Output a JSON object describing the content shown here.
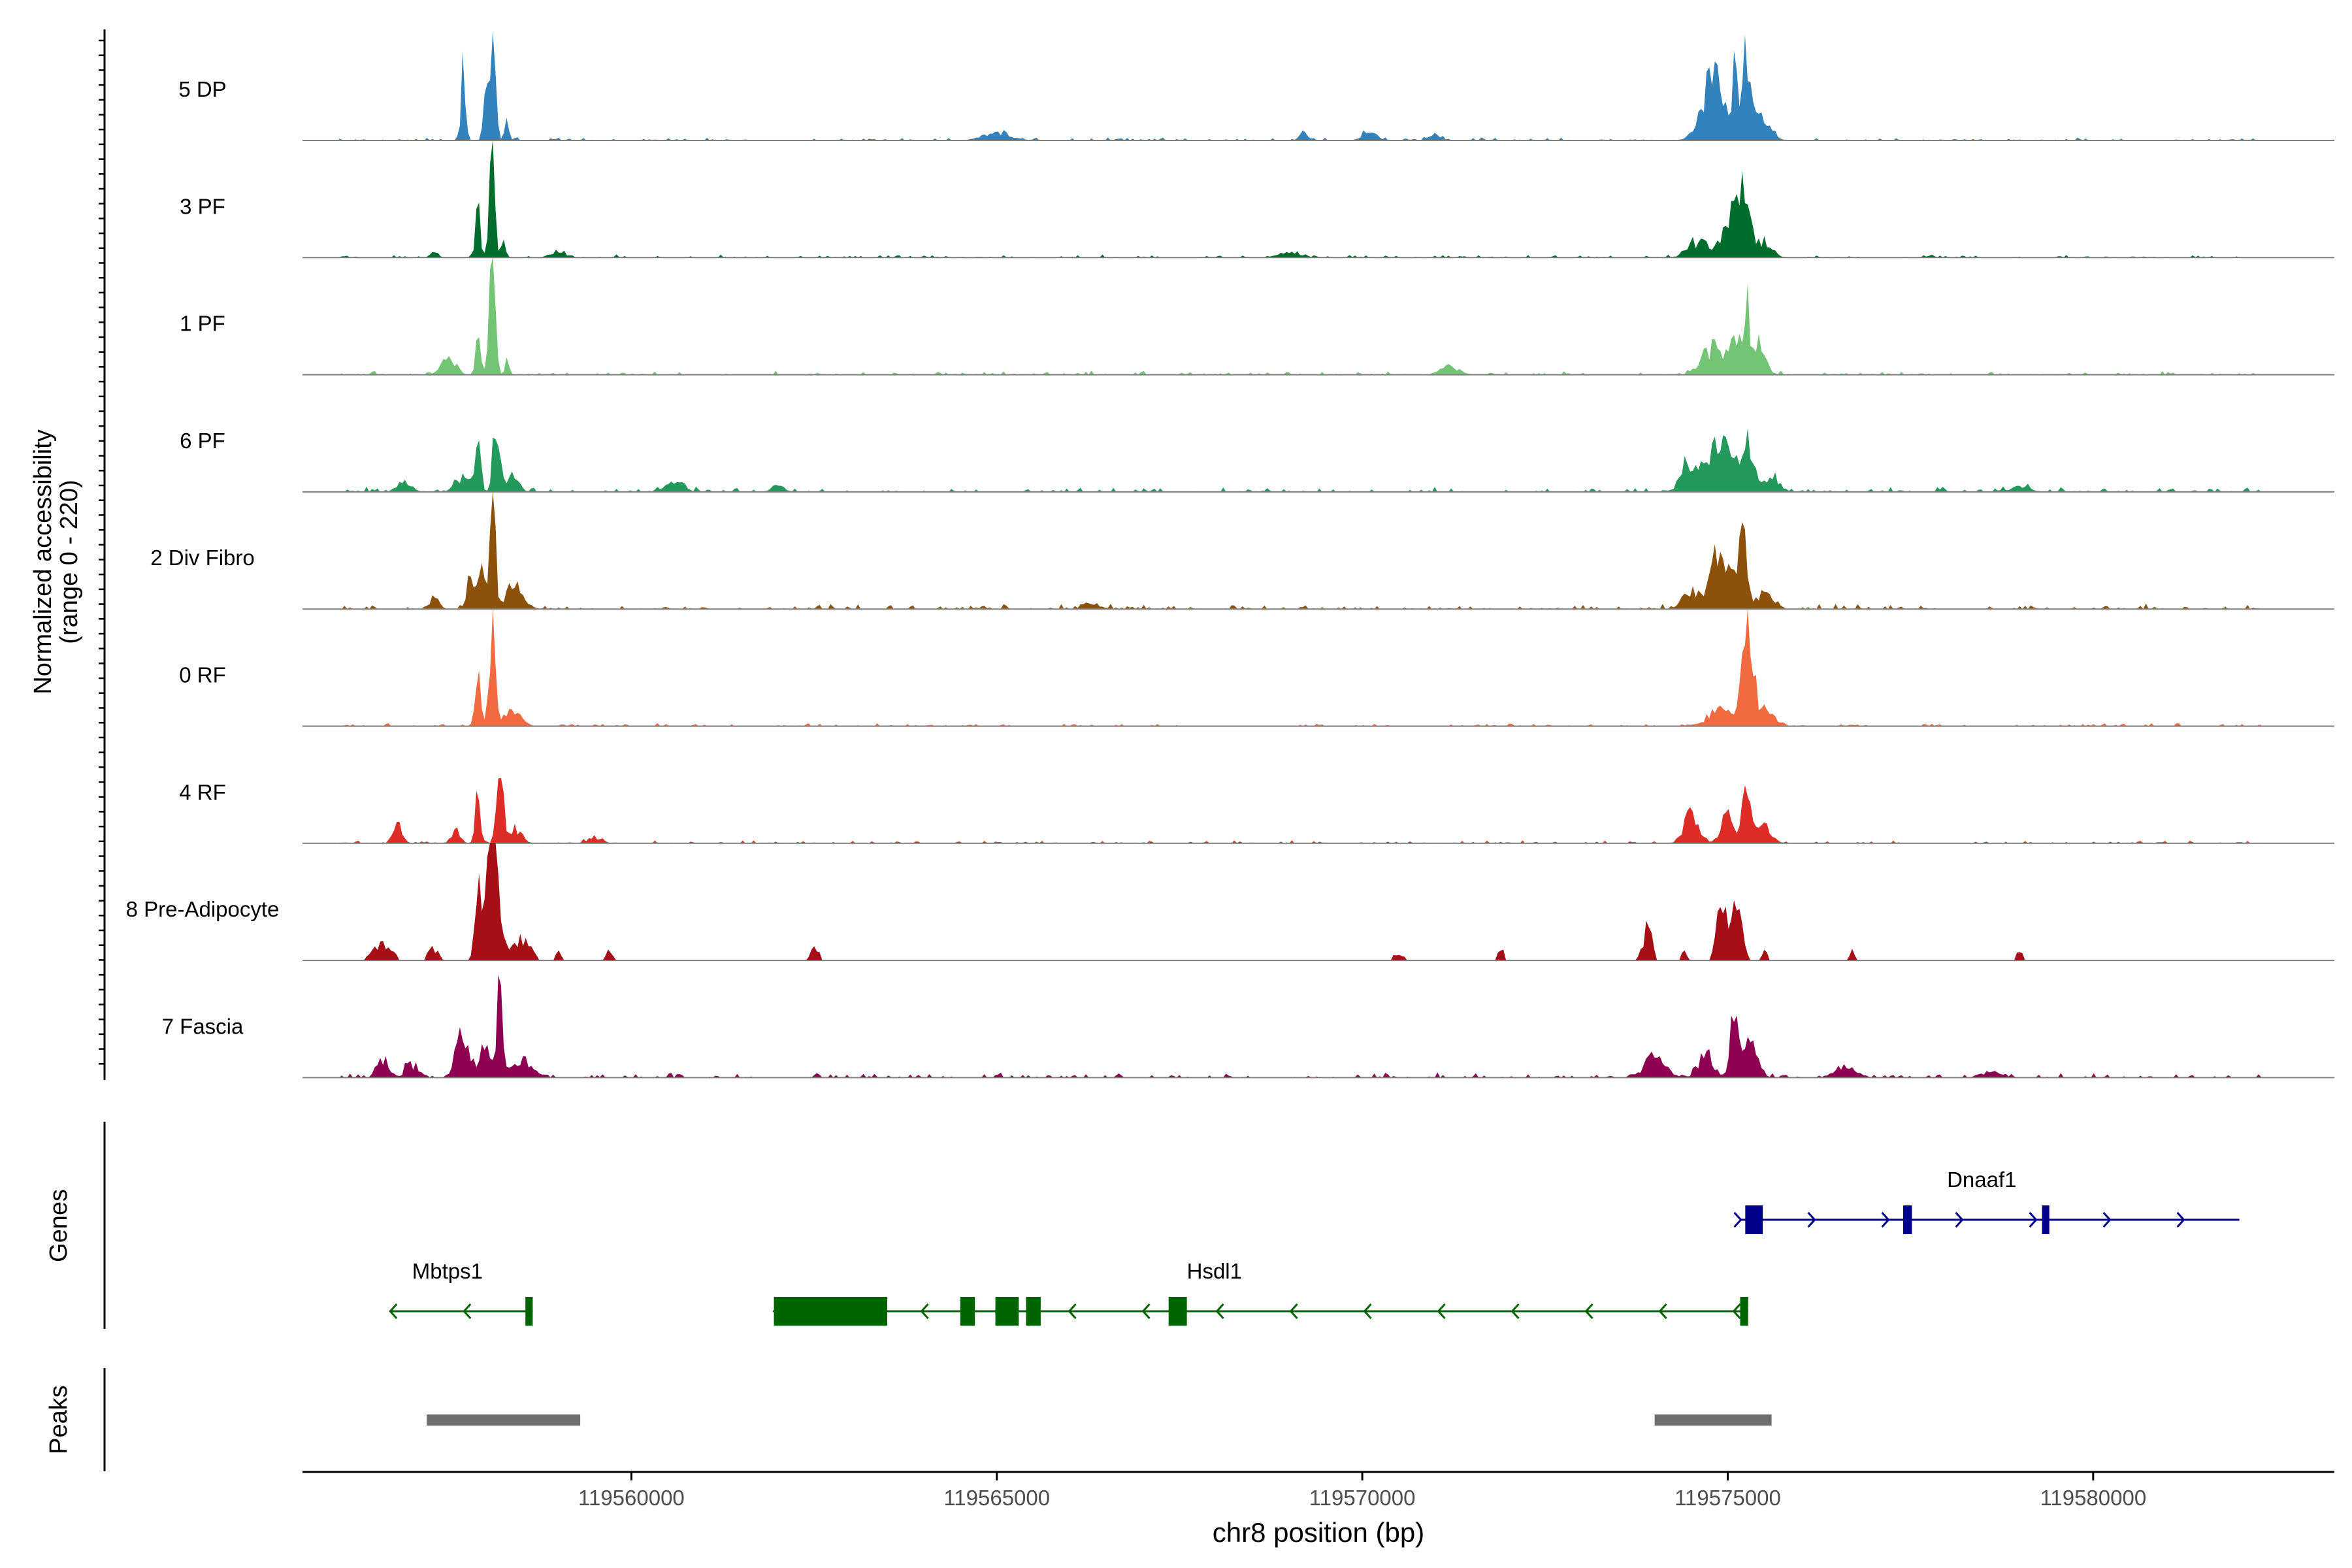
{
  "chart_data": {
    "type": "area",
    "title": "",
    "ylabel_line1": "Normalized accessibility",
    "ylabel_line2": "(range 0 - 220)",
    "xlabel": "chr8 position (bp)",
    "xlim": [
      119555500,
      119583300
    ],
    "ylim": [
      0,
      220
    ],
    "x_ticks": [
      119560000,
      119565000,
      119570000,
      119575000,
      119580000
    ],
    "x_tick_labels": [
      "119560000",
      "119565000",
      "119570000",
      "119575000",
      "119580000"
    ],
    "series": [
      {
        "name": "5 DP",
        "color": "#3182BD",
        "peaks": [
          [
            119557700,
            30,
            70
          ],
          [
            119558100,
            40,
            90
          ],
          [
            119558000,
            30,
            40
          ],
          [
            119558300,
            28,
            22
          ],
          [
            119574800,
            150,
            55
          ],
          [
            119575100,
            30,
            55
          ],
          [
            119575250,
            55,
            70
          ],
          [
            119575450,
            120,
            20
          ],
          [
            119565000,
            200,
            6
          ],
          [
            119569200,
            60,
            8
          ],
          [
            119570100,
            90,
            10
          ],
          [
            119571000,
            80,
            6
          ]
        ],
        "noise_pct": 3,
        "peak_height": 180
      },
      {
        "name": "3 PF",
        "color": "#006D2C",
        "peaks": [
          [
            119557300,
            40,
            6
          ],
          [
            119557900,
            30,
            48
          ],
          [
            119558100,
            35,
            100
          ],
          [
            119558250,
            30,
            20
          ],
          [
            119559000,
            100,
            6
          ],
          [
            119574600,
            140,
            14
          ],
          [
            119575100,
            140,
            40
          ],
          [
            119575250,
            55,
            40
          ],
          [
            119575500,
            100,
            15
          ],
          [
            119569000,
            150,
            5
          ]
        ],
        "noise_pct": 3,
        "peak_height": 180
      },
      {
        "name": "1 PF",
        "color": "#74C476",
        "peaks": [
          [
            119557500,
            90,
            18
          ],
          [
            119557900,
            30,
            50
          ],
          [
            119558100,
            40,
            100
          ],
          [
            119558300,
            30,
            12
          ],
          [
            119574800,
            150,
            24
          ],
          [
            119575100,
            65,
            30
          ],
          [
            119575250,
            40,
            68
          ],
          [
            119575400,
            100,
            30
          ],
          [
            119571200,
            120,
            8
          ]
        ],
        "noise_pct": 4,
        "peak_height": 180
      },
      {
        "name": "6 PF",
        "color": "#239A5C",
        "peaks": [
          [
            119556900,
            90,
            10
          ],
          [
            119557700,
            100,
            14
          ],
          [
            119557900,
            35,
            50
          ],
          [
            119558150,
            40,
            72
          ],
          [
            119558350,
            100,
            14
          ],
          [
            119560600,
            120,
            8
          ],
          [
            119574500,
            120,
            30
          ],
          [
            119574900,
            120,
            50
          ],
          [
            119575250,
            80,
            60
          ],
          [
            119575600,
            100,
            15
          ],
          [
            119562000,
            90,
            6
          ],
          [
            119579000,
            120,
            6
          ]
        ],
        "noise_pct": 5,
        "peak_height": 180
      },
      {
        "name": "2 Div Fibro",
        "color": "#8C510A",
        "peaks": [
          [
            119557300,
            70,
            10
          ],
          [
            119557800,
            60,
            25
          ],
          [
            119557950,
            35,
            50
          ],
          [
            119558100,
            40,
            95
          ],
          [
            119558400,
            120,
            20
          ],
          [
            119574500,
            110,
            14
          ],
          [
            119574900,
            140,
            50
          ],
          [
            119575200,
            60,
            80
          ],
          [
            119575500,
            100,
            15
          ],
          [
            119566300,
            110,
            6
          ]
        ],
        "noise_pct": 5,
        "peak_height": 180
      },
      {
        "name": "0 RF",
        "color": "#F16A40",
        "peaks": [
          [
            119557900,
            40,
            45
          ],
          [
            119558100,
            40,
            100
          ],
          [
            119558350,
            120,
            15
          ],
          [
            119574900,
            180,
            14
          ],
          [
            119575200,
            50,
            35
          ],
          [
            119575300,
            60,
            70
          ],
          [
            119575500,
            120,
            15
          ]
        ],
        "noise_pct": 3,
        "peak_height": 180
      },
      {
        "name": "4 RF",
        "color": "#DE2D26",
        "peaks": [
          [
            119556800,
            60,
            16
          ],
          [
            119557600,
            60,
            12
          ],
          [
            119557900,
            35,
            45
          ],
          [
            119558200,
            40,
            100
          ],
          [
            119558400,
            90,
            14
          ],
          [
            119574500,
            100,
            25
          ],
          [
            119575000,
            90,
            25
          ],
          [
            119575250,
            55,
            65
          ],
          [
            119575500,
            100,
            15
          ],
          [
            119559500,
            100,
            6
          ]
        ],
        "noise_pct": 3,
        "peak_height": 180
      },
      {
        "name": "8 Pre-Adipocyte",
        "color": "#A50F15",
        "peaks": [
          [
            119556600,
            120,
            16
          ],
          [
            119557300,
            80,
            10
          ],
          [
            119557900,
            40,
            60
          ],
          [
            119558100,
            90,
            100
          ],
          [
            119558500,
            120,
            18
          ],
          [
            119559000,
            40,
            8
          ],
          [
            119559700,
            40,
            8
          ],
          [
            119562500,
            60,
            12
          ],
          [
            119573900,
            60,
            30
          ],
          [
            119574400,
            40,
            12
          ],
          [
            119574900,
            60,
            40
          ],
          [
            119575100,
            90,
            45
          ],
          [
            119575500,
            40,
            10
          ],
          [
            119570500,
            60,
            8
          ],
          [
            119571900,
            40,
            10
          ],
          [
            119576700,
            40,
            8
          ],
          [
            119579000,
            40,
            10
          ]
        ],
        "noise_pct": 0,
        "peak_height": 180
      },
      {
        "name": "7 Fascia",
        "color": "#8E0152",
        "peaks": [
          [
            119556600,
            80,
            16
          ],
          [
            119557000,
            90,
            12
          ],
          [
            119557700,
            90,
            45
          ],
          [
            119558000,
            60,
            30
          ],
          [
            119558200,
            40,
            95
          ],
          [
            119558500,
            140,
            15
          ],
          [
            119574000,
            140,
            18
          ],
          [
            119574700,
            100,
            22
          ],
          [
            119575100,
            55,
            65
          ],
          [
            119575300,
            100,
            30
          ],
          [
            119576600,
            150,
            8
          ],
          [
            119578600,
            120,
            6
          ]
        ],
        "noise_pct": 5,
        "peak_height": 180
      }
    ],
    "genes": [
      {
        "name": "Mbtps1",
        "color": "#006400",
        "strand": "-",
        "row": 2,
        "start": 119556700,
        "end": 119558650,
        "exons": [
          [
            119558550,
            119558650
          ]
        ],
        "label_pos": 119557000
      },
      {
        "name": "Hsdl1",
        "color": "#006400",
        "strand": "-",
        "row": 2,
        "start": 119561950,
        "end": 119575280,
        "exons": [
          [
            119561950,
            119563500
          ],
          [
            119564500,
            119564700
          ],
          [
            119564980,
            119565300
          ],
          [
            119565400,
            119565600
          ],
          [
            119567350,
            119567600
          ],
          [
            119575170,
            119575280
          ]
        ],
        "label_pos": 119567600
      },
      {
        "name": "Dnaaf1",
        "color": "#00008B",
        "strand": "+",
        "row": 1,
        "start": 119575180,
        "end": 119582000,
        "exons": [
          [
            119575240,
            119575480
          ],
          [
            119577400,
            119577520
          ],
          [
            119579300,
            119579400
          ]
        ],
        "label_pos": 119578000
      }
    ],
    "genes_label": "Genes",
    "peaks_label": "Peaks",
    "peak_regions": [
      [
        119557200,
        119559300
      ],
      [
        119574000,
        119575600
      ]
    ]
  }
}
